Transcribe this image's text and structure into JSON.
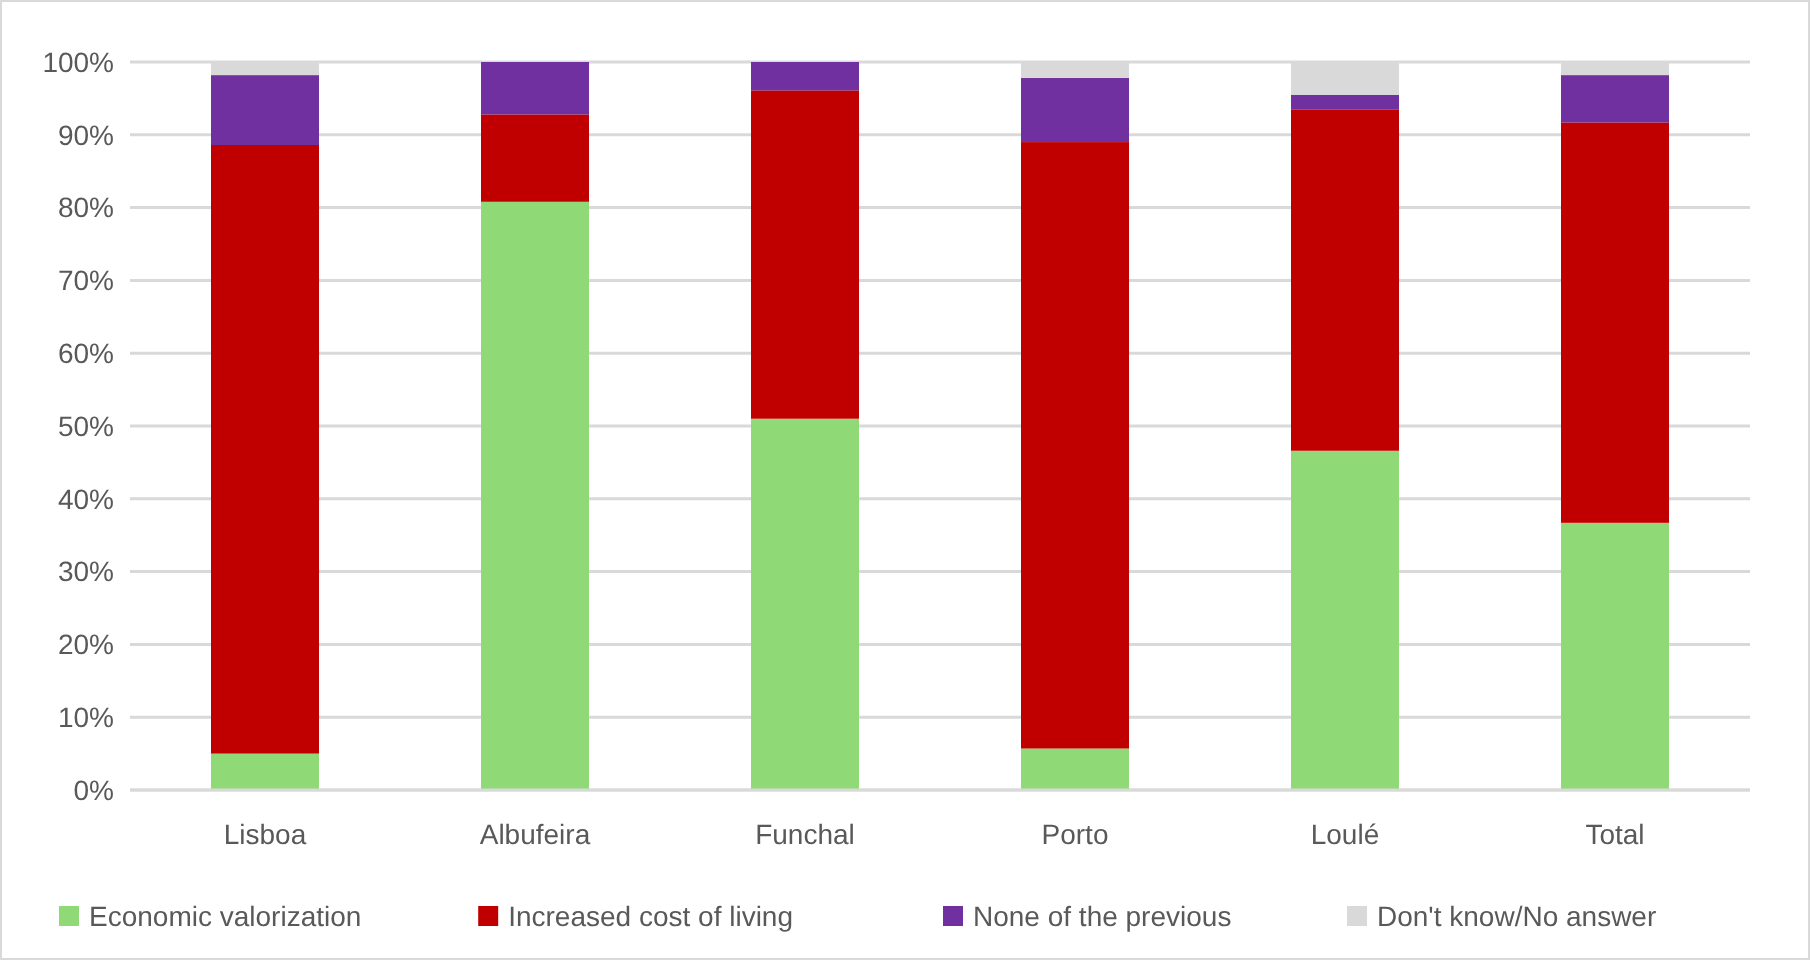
{
  "chart_data": {
    "type": "bar",
    "stacked": true,
    "categories": [
      "Lisboa",
      "Albufeira",
      "Funchal",
      "Porto",
      "Loulé",
      "Total"
    ],
    "series": [
      {
        "name": "Economic valorization",
        "color": "#8fd976",
        "values": [
          5,
          80.8,
          51,
          5.7,
          46.6,
          36.7
        ]
      },
      {
        "name": "Increased cost of living",
        "color": "#c00000",
        "values": [
          83.6,
          12,
          45.1,
          83.3,
          46.9,
          55
        ]
      },
      {
        "name": "None of the previous",
        "color": "#7030a0",
        "values": [
          9.6,
          7.2,
          3.9,
          8.8,
          2,
          6.5
        ]
      },
      {
        "name": "Don't know/No answer",
        "color": "#d9d9d9",
        "values": [
          1.8,
          0,
          0,
          2.2,
          4.5,
          1.8
        ]
      }
    ],
    "ylim": [
      0,
      100
    ],
    "yticks": [
      {
        "value": 0,
        "label": "0%"
      },
      {
        "value": 10,
        "label": "10%"
      },
      {
        "value": 20,
        "label": "20%"
      },
      {
        "value": 30,
        "label": "30%"
      },
      {
        "value": 40,
        "label": "40%"
      },
      {
        "value": 50,
        "label": "50%"
      },
      {
        "value": 60,
        "label": "60%"
      },
      {
        "value": 70,
        "label": "70%"
      },
      {
        "value": 80,
        "label": "80%"
      },
      {
        "value": 90,
        "label": "90%"
      },
      {
        "value": 100,
        "label": "100%"
      }
    ],
    "grid": "y",
    "legend": "bottom"
  }
}
